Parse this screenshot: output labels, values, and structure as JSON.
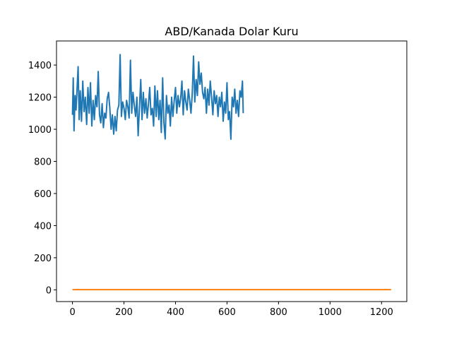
{
  "chart_data": {
    "type": "line",
    "title": "ABD/Kanada Dolar Kuru",
    "xlabel": "",
    "ylabel": "",
    "xlim": [
      -62,
      1298
    ],
    "ylim": [
      -73,
      1550
    ],
    "x_ticks": [
      0,
      200,
      400,
      600,
      800,
      1000,
      1200
    ],
    "y_ticks": [
      0,
      200,
      400,
      600,
      800,
      1000,
      1200,
      1400
    ],
    "grid": false,
    "legend": "none",
    "series": [
      {
        "color": "#1f77b4",
        "x_range": [
          0,
          663
        ],
        "approx_mean": 1140,
        "min": 938,
        "max": 1465,
        "points": [
          [
            0,
            1090
          ],
          [
            3,
            1320
          ],
          [
            6,
            990
          ],
          [
            10,
            1210
          ],
          [
            14,
            1120
          ],
          [
            18,
            1260
          ],
          [
            22,
            1390
          ],
          [
            26,
            1060
          ],
          [
            30,
            1240
          ],
          [
            35,
            1050
          ],
          [
            40,
            1300
          ],
          [
            45,
            1110
          ],
          [
            50,
            1200
          ],
          [
            55,
            1030
          ],
          [
            60,
            1260
          ],
          [
            65,
            1100
          ],
          [
            70,
            1290
          ],
          [
            75,
            1020
          ],
          [
            80,
            1180
          ],
          [
            85,
            1060
          ],
          [
            90,
            1210
          ],
          [
            95,
            1140
          ],
          [
            100,
            1360
          ],
          [
            105,
            1090
          ],
          [
            110,
            1040
          ],
          [
            115,
            1160
          ],
          [
            120,
            1010
          ],
          [
            125,
            1100
          ],
          [
            130,
            1070
          ],
          [
            135,
            1190
          ],
          [
            140,
            1230
          ],
          [
            145,
            1130
          ],
          [
            150,
            1000
          ],
          [
            155,
            1090
          ],
          [
            160,
            970
          ],
          [
            165,
            1080
          ],
          [
            170,
            990
          ],
          [
            175,
            1120
          ],
          [
            180,
            1150
          ],
          [
            185,
            1465
          ],
          [
            190,
            1080
          ],
          [
            195,
            1170
          ],
          [
            200,
            1130
          ],
          [
            205,
            1060
          ],
          [
            210,
            1180
          ],
          [
            215,
            1140
          ],
          [
            220,
            1070
          ],
          [
            225,
            1430
          ],
          [
            230,
            1100
          ],
          [
            235,
            1230
          ],
          [
            240,
            1150
          ],
          [
            245,
            1080
          ],
          [
            250,
            1200
          ],
          [
            255,
            960
          ],
          [
            260,
            1130
          ],
          [
            265,
            1310
          ],
          [
            270,
            1060
          ],
          [
            275,
            1230
          ],
          [
            280,
            1100
          ],
          [
            285,
            1190
          ],
          [
            290,
            1070
          ],
          [
            295,
            1160
          ],
          [
            300,
            1260
          ],
          [
            305,
            1090
          ],
          [
            310,
            1130
          ],
          [
            315,
            1020
          ],
          [
            320,
            1270
          ],
          [
            325,
            1080
          ],
          [
            330,
            1240
          ],
          [
            335,
            1060
          ],
          [
            340,
            1180
          ],
          [
            345,
            980
          ],
          [
            350,
            1320
          ],
          [
            355,
            1040
          ],
          [
            360,
            940
          ],
          [
            365,
            1210
          ],
          [
            370,
            1100
          ],
          [
            375,
            1150
          ],
          [
            380,
            1020
          ],
          [
            385,
            1200
          ],
          [
            390,
            1080
          ],
          [
            395,
            1180
          ],
          [
            400,
            1260
          ],
          [
            405,
            1100
          ],
          [
            410,
            1210
          ],
          [
            415,
            1140
          ],
          [
            420,
            1190
          ],
          [
            425,
            1300
          ],
          [
            430,
            1090
          ],
          [
            435,
            1240
          ],
          [
            440,
            1170
          ],
          [
            445,
            1120
          ],
          [
            450,
            1250
          ],
          [
            455,
            1180
          ],
          [
            460,
            1100
          ],
          [
            465,
            1220
          ],
          [
            470,
            1456
          ],
          [
            475,
            1170
          ],
          [
            480,
            1310
          ],
          [
            485,
            1210
          ],
          [
            490,
            1420
          ],
          [
            495,
            1280
          ],
          [
            500,
            1350
          ],
          [
            505,
            1230
          ],
          [
            510,
            1190
          ],
          [
            515,
            1260
          ],
          [
            520,
            1100
          ],
          [
            525,
            1250
          ],
          [
            530,
            1150
          ],
          [
            535,
            1300
          ],
          [
            540,
            1200
          ],
          [
            545,
            1090
          ],
          [
            550,
            1240
          ],
          [
            555,
            1160
          ],
          [
            560,
            1210
          ],
          [
            565,
            1080
          ],
          [
            570,
            1200
          ],
          [
            575,
            1140
          ],
          [
            580,
            1230
          ],
          [
            585,
            1050
          ],
          [
            590,
            1170
          ],
          [
            595,
            1100
          ],
          [
            600,
            1290
          ],
          [
            605,
            1060
          ],
          [
            610,
            1110
          ],
          [
            615,
            938
          ],
          [
            620,
            1200
          ],
          [
            625,
            1140
          ],
          [
            630,
            1250
          ],
          [
            635,
            1100
          ],
          [
            640,
            1180
          ],
          [
            645,
            1080
          ],
          [
            650,
            1240
          ],
          [
            655,
            1200
          ],
          [
            660,
            1300
          ],
          [
            663,
            1100
          ]
        ]
      },
      {
        "color": "#ff7f0e",
        "points": [
          [
            0,
            1.25
          ],
          [
            1237,
            1.25
          ]
        ]
      }
    ]
  }
}
